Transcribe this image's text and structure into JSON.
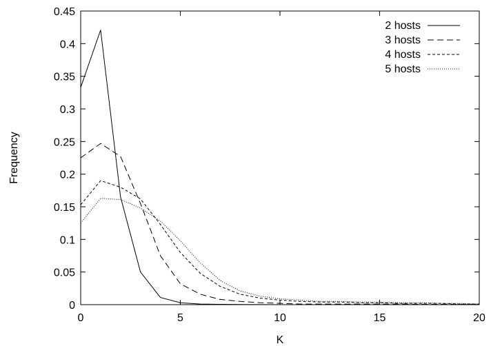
{
  "chart_data": {
    "type": "line",
    "title": "",
    "xlabel": "K",
    "ylabel": "Frequency",
    "xlim": [
      0,
      20
    ],
    "ylim": [
      0,
      0.45
    ],
    "xticks": [
      0,
      5,
      10,
      15,
      20
    ],
    "yticks": [
      0,
      0.05,
      0.1,
      0.15,
      0.2,
      0.25,
      0.3,
      0.35,
      0.4,
      0.45
    ],
    "xtick_labels": [
      "0",
      "5",
      "10",
      "15",
      "20"
    ],
    "ytick_labels": [
      "0",
      "0.05",
      "0.1",
      "0.15",
      "0.2",
      "0.25",
      "0.3",
      "0.35",
      "0.4",
      "0.45"
    ],
    "grid": false,
    "legend_position": "top-right",
    "series": [
      {
        "name": "2 hosts",
        "dash": "solid",
        "x": [
          0,
          1,
          2,
          3,
          4,
          5,
          6,
          7,
          8,
          9,
          10,
          11,
          12,
          13,
          14,
          15,
          16,
          17,
          18,
          19,
          20
        ],
        "y": [
          0.333,
          0.421,
          0.165,
          0.05,
          0.011,
          0.003,
          0.001,
          0.0005,
          0.0002,
          0.0001,
          0,
          0,
          0,
          0,
          0,
          0,
          0,
          0,
          0,
          0,
          0
        ]
      },
      {
        "name": "3 hosts",
        "dash": "long-dash",
        "x": [
          0,
          1,
          2,
          3,
          4,
          5,
          6,
          7,
          8,
          9,
          10,
          11,
          12,
          13,
          14,
          15,
          16,
          17,
          18,
          19,
          20
        ],
        "y": [
          0.225,
          0.247,
          0.227,
          0.155,
          0.075,
          0.032,
          0.016,
          0.008,
          0.005,
          0.003,
          0.002,
          0.001,
          0.001,
          0.001,
          0.001,
          0.001,
          0.001,
          0.0005,
          0.0005,
          0.0005,
          0.0005
        ]
      },
      {
        "name": "4 hosts",
        "dash": "short-dash",
        "x": [
          0,
          1,
          2,
          3,
          4,
          5,
          6,
          7,
          8,
          9,
          10,
          11,
          12,
          13,
          14,
          15,
          16,
          17,
          18,
          19,
          20
        ],
        "y": [
          0.153,
          0.19,
          0.18,
          0.162,
          0.123,
          0.08,
          0.048,
          0.028,
          0.016,
          0.01,
          0.007,
          0.005,
          0.004,
          0.004,
          0.003,
          0.003,
          0.002,
          0.002,
          0.002,
          0.001,
          0.001
        ]
      },
      {
        "name": "5 hosts",
        "dash": "dotted",
        "x": [
          0,
          1,
          2,
          3,
          4,
          5,
          6,
          7,
          8,
          9,
          10,
          11,
          12,
          13,
          14,
          15,
          16,
          17,
          18,
          19,
          20
        ],
        "y": [
          0.125,
          0.163,
          0.161,
          0.148,
          0.128,
          0.098,
          0.064,
          0.037,
          0.021,
          0.013,
          0.009,
          0.007,
          0.005,
          0.005,
          0.004,
          0.004,
          0.003,
          0.003,
          0.002,
          0.002,
          0.001
        ]
      }
    ]
  }
}
